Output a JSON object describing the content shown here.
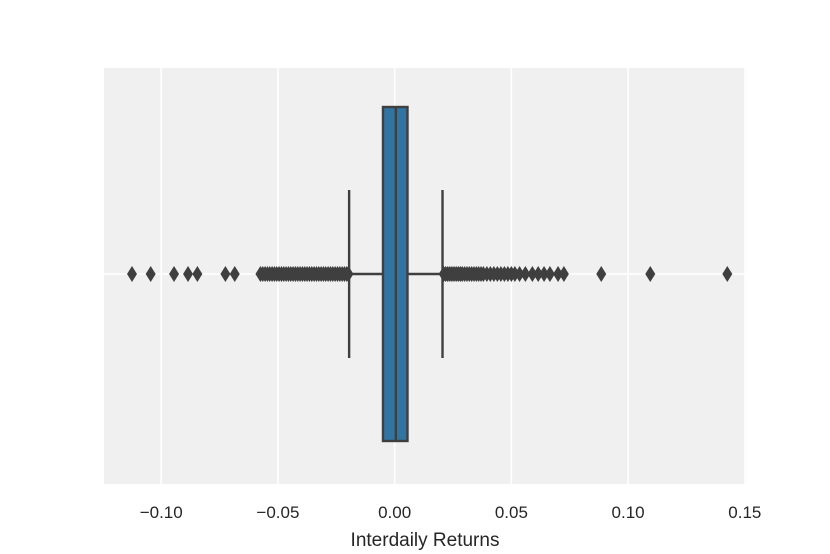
{
  "chart_data": {
    "type": "box",
    "orientation": "horizontal",
    "xlabel": "Interdaily Returns",
    "xlim": [
      -0.1245,
      0.1505
    ],
    "xticks": [
      -0.1,
      -0.05,
      0.0,
      0.05,
      0.1,
      0.15
    ],
    "xtick_labels": [
      "−0.10",
      "−0.05",
      "0.00",
      "0.05",
      "0.10",
      "0.15"
    ],
    "grid": true,
    "box": {
      "q1": -0.005,
      "median": 0.0005,
      "q3": 0.0055,
      "whisker_low": -0.0195,
      "whisker_high": 0.0205
    },
    "outliers": [
      -0.1125,
      -0.1045,
      -0.0945,
      -0.0885,
      -0.0845,
      -0.0725,
      -0.0685,
      -0.0575,
      -0.0565,
      -0.0555,
      -0.0545,
      -0.0535,
      -0.0525,
      -0.0515,
      -0.0505,
      -0.0495,
      -0.0485,
      -0.0475,
      -0.0465,
      -0.0455,
      -0.0445,
      -0.0435,
      -0.0425,
      -0.0415,
      -0.0405,
      -0.0395,
      -0.0385,
      -0.0375,
      -0.0365,
      -0.0355,
      -0.0345,
      -0.0335,
      -0.0325,
      -0.0315,
      -0.0305,
      -0.0295,
      -0.0285,
      -0.0275,
      -0.0265,
      -0.0255,
      -0.0245,
      -0.0235,
      -0.0225,
      -0.0215,
      -0.0205,
      -0.0198,
      0.021,
      0.0218,
      0.0226,
      0.0234,
      0.0242,
      0.025,
      0.0258,
      0.0266,
      0.0274,
      0.0282,
      0.029,
      0.03,
      0.031,
      0.032,
      0.033,
      0.034,
      0.035,
      0.036,
      0.037,
      0.038,
      0.0395,
      0.041,
      0.0425,
      0.044,
      0.0455,
      0.047,
      0.0485,
      0.05,
      0.0515,
      0.0535,
      0.056,
      0.059,
      0.0615,
      0.064,
      0.0665,
      0.07,
      0.0725,
      0.0885,
      0.1095,
      0.1425
    ],
    "colors": {
      "background": "#f0f0f0",
      "grid": "#ffffff",
      "box_fill": "#3274a1",
      "line": "#3f3f3f"
    }
  }
}
